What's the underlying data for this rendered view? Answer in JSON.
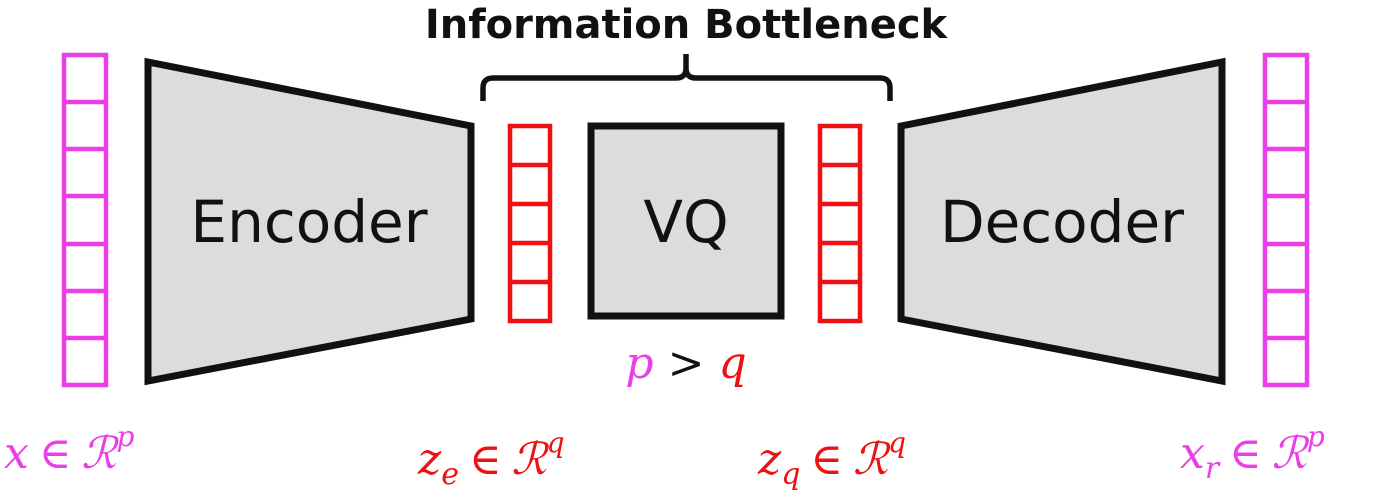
{
  "title": "Information Bottleneck",
  "blocks": {
    "encoder": "Encoder",
    "vq": "VQ",
    "decoder": "Decoder"
  },
  "inequality": {
    "left": "p",
    "op": ">",
    "right": "q"
  },
  "labels": {
    "input": {
      "var": "x",
      "sub": "",
      "in": "∈",
      "space": "ℛ",
      "sup": "p"
    },
    "ze": {
      "var": "z",
      "sub": "e",
      "in": "∈",
      "space": "ℛ",
      "sup": "q"
    },
    "zq": {
      "var": "z",
      "sub": "q",
      "in": "∈",
      "space": "ℛ",
      "sup": "q"
    },
    "output": {
      "var": "x",
      "sub": "r",
      "in": "∈",
      "space": "ℛ",
      "sup": "p"
    }
  },
  "colors": {
    "magenta": "#ea3fe6",
    "red": "#ee1111",
    "block_fill": "#dcdcdc",
    "stroke": "#111111"
  }
}
